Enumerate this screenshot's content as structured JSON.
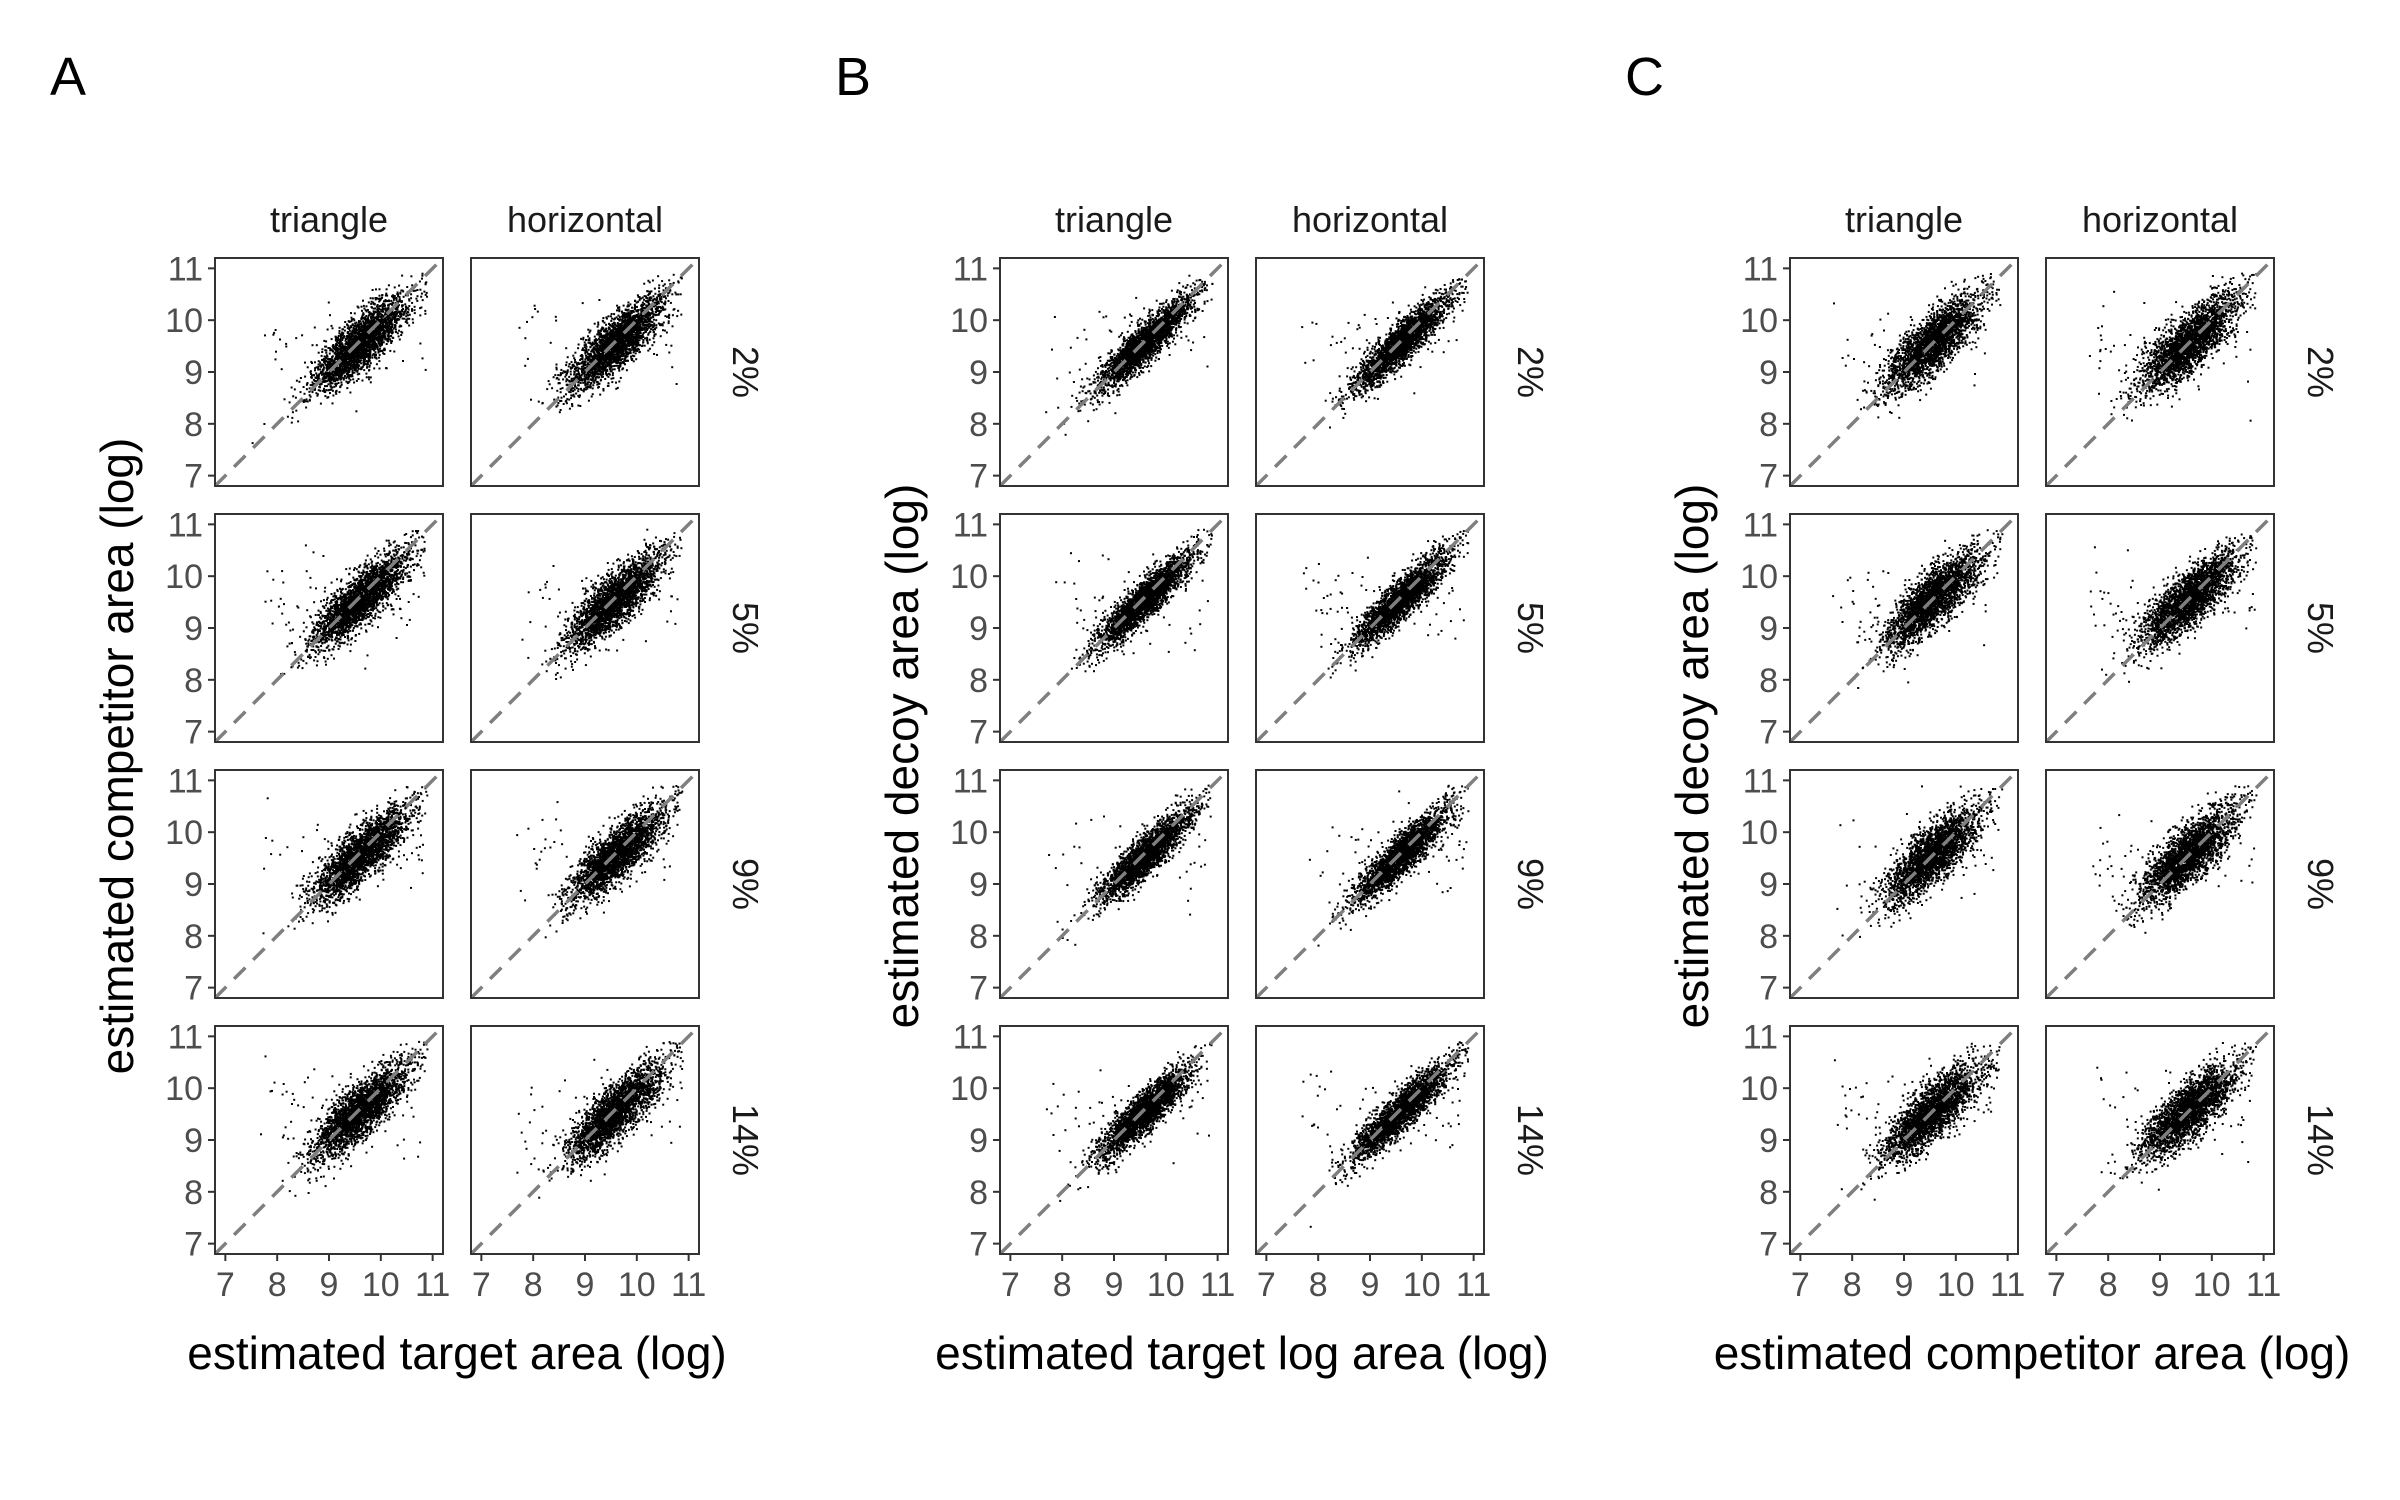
{
  "chart_data": [
    {
      "panel_label": "A",
      "type": "scatter",
      "xlabel": "estimated target area (log)",
      "ylabel": "estimated competitor area (log)",
      "columns": [
        "triangle",
        "horizontal"
      ],
      "rows": [
        "2%",
        "5%",
        "9%",
        "14%"
      ],
      "x_ticks": [
        7,
        8,
        9,
        10,
        11
      ],
      "y_ticks": [
        7,
        8,
        9,
        10,
        11
      ],
      "xlim": [
        6.8,
        11.2
      ],
      "ylim": [
        6.8,
        11.2
      ],
      "reference_line": "y = x (dashed)",
      "point_cloud": {
        "center_x": 9.6,
        "center_y": 9.55,
        "spread_x": 0.45,
        "correlation": 0.82
      }
    },
    {
      "panel_label": "B",
      "type": "scatter",
      "xlabel": "estimated target log area (log)",
      "ylabel": "estimated decoy area (log)",
      "columns": [
        "triangle",
        "horizontal"
      ],
      "rows": [
        "2%",
        "5%",
        "9%",
        "14%"
      ],
      "x_ticks": [
        7,
        8,
        9,
        10,
        11
      ],
      "y_ticks": [
        7,
        8,
        9,
        10,
        11
      ],
      "xlim": [
        6.8,
        11.2
      ],
      "ylim": [
        6.8,
        11.2
      ],
      "reference_line": "y = x (dashed)",
      "point_cloud": {
        "center_x": 9.6,
        "center_y": 9.55,
        "spread_x": 0.45,
        "correlation": 0.9
      }
    },
    {
      "panel_label": "C",
      "type": "scatter",
      "xlabel": "estimated competitor area (log)",
      "ylabel": "estimated decoy area (log)",
      "columns": [
        "triangle",
        "horizontal"
      ],
      "rows": [
        "2%",
        "5%",
        "9%",
        "14%"
      ],
      "x_ticks": [
        7,
        8,
        9,
        10,
        11
      ],
      "y_ticks": [
        7,
        8,
        9,
        10,
        11
      ],
      "xlim": [
        6.8,
        11.2
      ],
      "ylim": [
        6.8,
        11.2
      ],
      "reference_line": "y = x (dashed)",
      "point_cloud": {
        "center_x": 9.55,
        "center_y": 9.55,
        "spread_x": 0.45,
        "correlation": 0.8
      }
    }
  ]
}
